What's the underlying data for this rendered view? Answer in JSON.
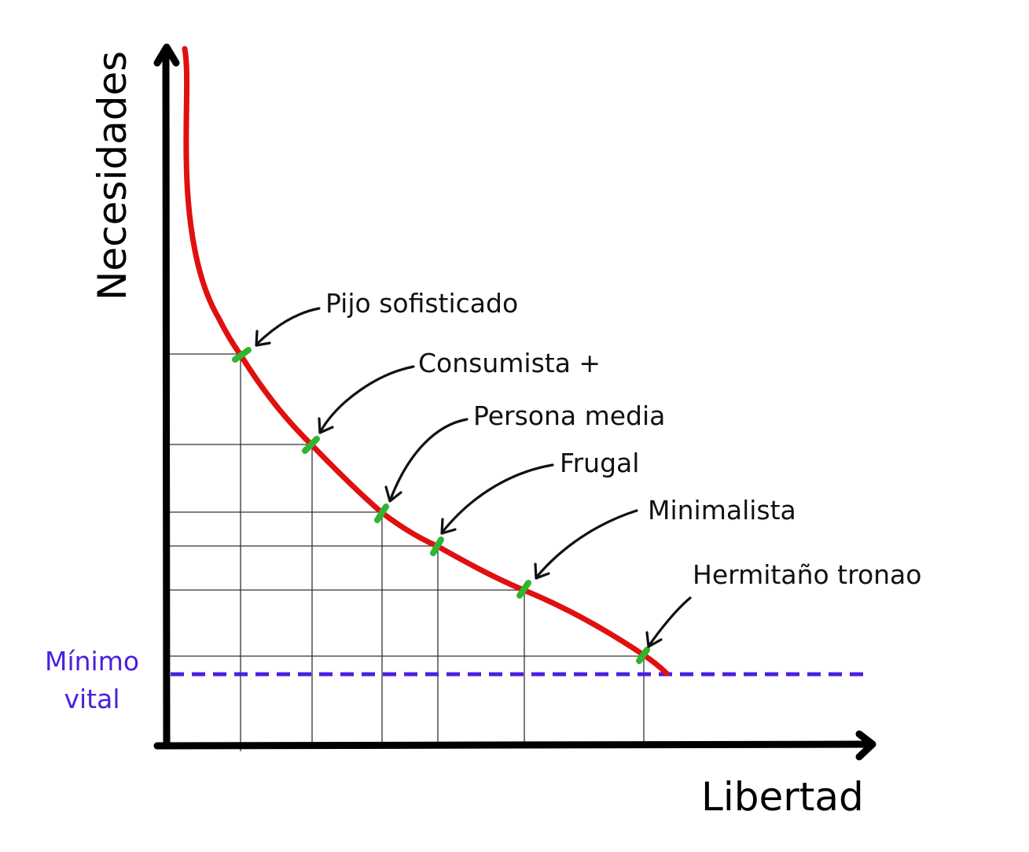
{
  "axes": {
    "y_label": "Necesidades",
    "x_label": "Libertad"
  },
  "minimum": {
    "line1": "Mínimo",
    "line2": "vital",
    "color": "#4b1fe0"
  },
  "points": [
    {
      "label": "Pijo sofisticado"
    },
    {
      "label": "Consumista +"
    },
    {
      "label": "Persona media"
    },
    {
      "label": "Frugal"
    },
    {
      "label": "Minimalista"
    },
    {
      "label": "Hermitaño tronao"
    }
  ],
  "colors": {
    "curve": "#e01010",
    "marker": "#2fb52f",
    "axis": "#000000",
    "grid": "#333333"
  }
}
